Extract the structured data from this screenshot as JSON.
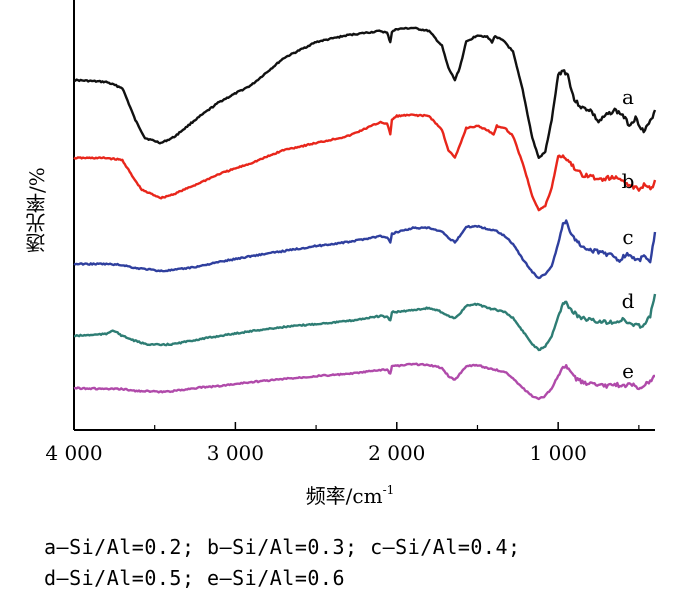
{
  "chart_data": {
    "type": "line",
    "xlabel": "频率/cm",
    "xlabel_sup": "-1",
    "ylabel": "透光率/%",
    "xlim": [
      4000,
      400
    ],
    "x_reversed": true,
    "xticks": [
      4000,
      3000,
      2000,
      1000
    ],
    "xtick_labels": [
      "4 000",
      "3 000",
      "2 000",
      "1 000"
    ],
    "yticks": [],
    "grid": false,
    "series": [
      {
        "name": "a",
        "color": "#111111",
        "offset": 80,
        "scale": 1.0,
        "points": [
          [
            4000,
            0
          ],
          [
            3800,
            2
          ],
          [
            3700,
            8
          ],
          [
            3620,
            40
          ],
          [
            3560,
            58
          ],
          [
            3460,
            63
          ],
          [
            3380,
            57
          ],
          [
            3250,
            40
          ],
          [
            3100,
            22
          ],
          [
            2900,
            5
          ],
          [
            2700,
            -22
          ],
          [
            2500,
            -38
          ],
          [
            2300,
            -45
          ],
          [
            2100,
            -49
          ],
          [
            2060,
            -47
          ],
          [
            2040,
            -38
          ],
          [
            2030,
            -48
          ],
          [
            2000,
            -51
          ],
          [
            1900,
            -52
          ],
          [
            1800,
            -49
          ],
          [
            1720,
            -34
          ],
          [
            1680,
            -12
          ],
          [
            1640,
            0
          ],
          [
            1610,
            -12
          ],
          [
            1570,
            -38
          ],
          [
            1500,
            -45
          ],
          [
            1440,
            -43
          ],
          [
            1410,
            -38
          ],
          [
            1390,
            -44
          ],
          [
            1330,
            -38
          ],
          [
            1280,
            -28
          ],
          [
            1220,
            10
          ],
          [
            1160,
            58
          ],
          [
            1120,
            78
          ],
          [
            1080,
            72
          ],
          [
            1040,
            40
          ],
          [
            1000,
            -5
          ],
          [
            970,
            -10
          ],
          [
            940,
            -5
          ],
          [
            900,
            20
          ],
          [
            850,
            28
          ],
          [
            800,
            30
          ],
          [
            750,
            42
          ],
          [
            700,
            35
          ],
          [
            650,
            30
          ],
          [
            600,
            35
          ],
          [
            560,
            45
          ],
          [
            520,
            38
          ],
          [
            470,
            52
          ],
          [
            430,
            42
          ],
          [
            400,
            30
          ]
        ]
      },
      {
        "name": "b",
        "color": "#e8261b",
        "offset": 158,
        "scale": 1.0,
        "points": [
          [
            4000,
            0
          ],
          [
            3800,
            0
          ],
          [
            3700,
            2
          ],
          [
            3640,
            18
          ],
          [
            3580,
            32
          ],
          [
            3460,
            40
          ],
          [
            3380,
            36
          ],
          [
            3250,
            27
          ],
          [
            3100,
            16
          ],
          [
            2900,
            5
          ],
          [
            2700,
            -8
          ],
          [
            2500,
            -15
          ],
          [
            2300,
            -22
          ],
          [
            2100,
            -36
          ],
          [
            2060,
            -34
          ],
          [
            2040,
            -24
          ],
          [
            2030,
            -38
          ],
          [
            2000,
            -42
          ],
          [
            1900,
            -43
          ],
          [
            1800,
            -42
          ],
          [
            1720,
            -28
          ],
          [
            1680,
            -8
          ],
          [
            1640,
            0
          ],
          [
            1610,
            -12
          ],
          [
            1570,
            -30
          ],
          [
            1500,
            -32
          ],
          [
            1440,
            -28
          ],
          [
            1400,
            -24
          ],
          [
            1380,
            -32
          ],
          [
            1330,
            -30
          ],
          [
            1280,
            -22
          ],
          [
            1220,
            5
          ],
          [
            1160,
            38
          ],
          [
            1120,
            52
          ],
          [
            1080,
            48
          ],
          [
            1040,
            30
          ],
          [
            1000,
            -2
          ],
          [
            970,
            -2
          ],
          [
            940,
            2
          ],
          [
            900,
            10
          ],
          [
            850,
            17
          ],
          [
            800,
            18
          ],
          [
            750,
            22
          ],
          [
            700,
            20
          ],
          [
            650,
            20
          ],
          [
            600,
            22
          ],
          [
            550,
            28
          ],
          [
            500,
            31
          ],
          [
            460,
            26
          ],
          [
            420,
            30
          ],
          [
            400,
            22
          ]
        ]
      },
      {
        "name": "c",
        "color": "#2f3f9e",
        "offset": 264,
        "scale": 1.0,
        "points": [
          [
            4000,
            0
          ],
          [
            3800,
            0
          ],
          [
            3700,
            1
          ],
          [
            3620,
            4
          ],
          [
            3560,
            5
          ],
          [
            3460,
            7
          ],
          [
            3380,
            6
          ],
          [
            3250,
            3
          ],
          [
            3100,
            -2
          ],
          [
            2900,
            -8
          ],
          [
            2700,
            -13
          ],
          [
            2500,
            -18
          ],
          [
            2300,
            -22
          ],
          [
            2100,
            -28
          ],
          [
            2060,
            -26
          ],
          [
            2040,
            -22
          ],
          [
            2030,
            -30
          ],
          [
            2000,
            -32
          ],
          [
            1900,
            -36
          ],
          [
            1800,
            -36
          ],
          [
            1720,
            -32
          ],
          [
            1680,
            -26
          ],
          [
            1640,
            -22
          ],
          [
            1610,
            -28
          ],
          [
            1570,
            -37
          ],
          [
            1500,
            -38
          ],
          [
            1440,
            -35
          ],
          [
            1380,
            -33
          ],
          [
            1330,
            -28
          ],
          [
            1280,
            -20
          ],
          [
            1220,
            -5
          ],
          [
            1160,
            8
          ],
          [
            1120,
            14
          ],
          [
            1080,
            10
          ],
          [
            1040,
            2
          ],
          [
            1000,
            -20
          ],
          [
            970,
            -40
          ],
          [
            950,
            -44
          ],
          [
            920,
            -30
          ],
          [
            880,
            -22
          ],
          [
            850,
            -18
          ],
          [
            800,
            -14
          ],
          [
            750,
            -12
          ],
          [
            700,
            -10
          ],
          [
            650,
            -8
          ],
          [
            620,
            -3
          ],
          [
            580,
            -10
          ],
          [
            540,
            -6
          ],
          [
            500,
            -4
          ],
          [
            460,
            -8
          ],
          [
            430,
            -2
          ],
          [
            400,
            -32
          ]
        ]
      },
      {
        "name": "d",
        "color": "#2e7d74",
        "offset": 336,
        "scale": 1.0,
        "points": [
          [
            4000,
            0
          ],
          [
            3800,
            -2
          ],
          [
            3760,
            -6
          ],
          [
            3700,
            0
          ],
          [
            3620,
            5
          ],
          [
            3560,
            8
          ],
          [
            3460,
            9
          ],
          [
            3380,
            8
          ],
          [
            3250,
            4
          ],
          [
            3100,
            0
          ],
          [
            2900,
            -5
          ],
          [
            2700,
            -9
          ],
          [
            2500,
            -12
          ],
          [
            2300,
            -15
          ],
          [
            2100,
            -20
          ],
          [
            2060,
            -19
          ],
          [
            2040,
            -15
          ],
          [
            2030,
            -24
          ],
          [
            2000,
            -24
          ],
          [
            1900,
            -26
          ],
          [
            1800,
            -28
          ],
          [
            1720,
            -24
          ],
          [
            1680,
            -20
          ],
          [
            1640,
            -18
          ],
          [
            1610,
            -22
          ],
          [
            1570,
            -30
          ],
          [
            1500,
            -32
          ],
          [
            1440,
            -28
          ],
          [
            1380,
            -26
          ],
          [
            1330,
            -24
          ],
          [
            1280,
            -18
          ],
          [
            1220,
            -5
          ],
          [
            1160,
            8
          ],
          [
            1120,
            14
          ],
          [
            1080,
            10
          ],
          [
            1040,
            0
          ],
          [
            1000,
            -20
          ],
          [
            970,
            -32
          ],
          [
            950,
            -34
          ],
          [
            920,
            -26
          ],
          [
            880,
            -20
          ],
          [
            850,
            -18
          ],
          [
            800,
            -16
          ],
          [
            750,
            -14
          ],
          [
            700,
            -14
          ],
          [
            650,
            -14
          ],
          [
            600,
            -16
          ],
          [
            550,
            -12
          ],
          [
            500,
            -10
          ],
          [
            460,
            -12
          ],
          [
            430,
            -20
          ],
          [
            400,
            -42
          ]
        ]
      },
      {
        "name": "e",
        "color": "#b04aaa",
        "offset": 388,
        "scale": 1.0,
        "points": [
          [
            4000,
            0
          ],
          [
            3800,
            1
          ],
          [
            3700,
            1
          ],
          [
            3620,
            3
          ],
          [
            3560,
            3
          ],
          [
            3460,
            4
          ],
          [
            3380,
            3
          ],
          [
            3250,
            0
          ],
          [
            3100,
            -2
          ],
          [
            2900,
            -6
          ],
          [
            2700,
            -9
          ],
          [
            2500,
            -12
          ],
          [
            2300,
            -14
          ],
          [
            2100,
            -18
          ],
          [
            2060,
            -18
          ],
          [
            2040,
            -14
          ],
          [
            2030,
            -22
          ],
          [
            2000,
            -22
          ],
          [
            1900,
            -24
          ],
          [
            1800,
            -23
          ],
          [
            1720,
            -20
          ],
          [
            1680,
            -12
          ],
          [
            1640,
            -8
          ],
          [
            1610,
            -14
          ],
          [
            1570,
            -22
          ],
          [
            1500,
            -23
          ],
          [
            1440,
            -20
          ],
          [
            1380,
            -18
          ],
          [
            1330,
            -16
          ],
          [
            1280,
            -10
          ],
          [
            1220,
            0
          ],
          [
            1160,
            8
          ],
          [
            1120,
            11
          ],
          [
            1080,
            8
          ],
          [
            1040,
            0
          ],
          [
            1000,
            -12
          ],
          [
            970,
            -20
          ],
          [
            950,
            -22
          ],
          [
            920,
            -14
          ],
          [
            880,
            -8
          ],
          [
            850,
            -6
          ],
          [
            800,
            -4
          ],
          [
            750,
            -2
          ],
          [
            700,
            -2
          ],
          [
            650,
            -4
          ],
          [
            600,
            -2
          ],
          [
            550,
            -4
          ],
          [
            500,
            0
          ],
          [
            460,
            -4
          ],
          [
            430,
            -6
          ],
          [
            400,
            -12
          ]
        ]
      }
    ]
  },
  "caption": {
    "line1": "a—Si/Al=0.2; b—Si/Al=0.3; c—Si/Al=0.4;",
    "line2": "d—Si/Al=0.5; e—Si/Al=0.6"
  }
}
